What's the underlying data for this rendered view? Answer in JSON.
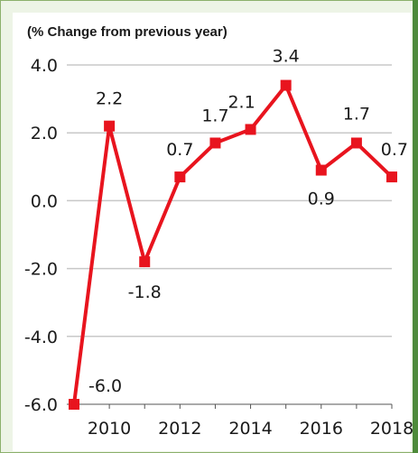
{
  "chart_data": {
    "type": "line",
    "title": "",
    "subtitle": "(% Change from previous year)",
    "xlabel": "",
    "ylabel": "",
    "x": [
      2009,
      2010,
      2011,
      2012,
      2013,
      2014,
      2015,
      2016,
      2017,
      2018
    ],
    "series": [
      {
        "values": [
          -6.0,
          2.2,
          -1.8,
          0.7,
          1.7,
          2.1,
          3.4,
          0.9,
          1.7,
          0.7
        ],
        "color": "#e8141e"
      }
    ],
    "data_labels": [
      "-6.0",
      "2.2",
      "-1.8",
      "0.7",
      "1.7",
      "2.1",
      "3.4",
      "0.9",
      "1.7",
      "0.7"
    ],
    "x_tick_labels": [
      "2010",
      "2012",
      "2014",
      "2016",
      "2018"
    ],
    "x_tick_values": [
      2010,
      2012,
      2014,
      2016,
      2018
    ],
    "y_tick_labels": [
      "4.0",
      "2.0",
      "0.0",
      "-2.0",
      "-4.0",
      "-6.0"
    ],
    "y_tick_values": [
      4,
      2,
      0,
      -2,
      -4,
      -6
    ],
    "ylim": [
      -6,
      4
    ],
    "xlim": [
      2009,
      2018
    ],
    "grid": true,
    "legend": "none",
    "colors": {
      "line": "#e8141e",
      "grid": "#c8c8c8",
      "frame": "#8cb06c",
      "accent": "#4d8a3a",
      "background": "#edf4e6"
    }
  }
}
